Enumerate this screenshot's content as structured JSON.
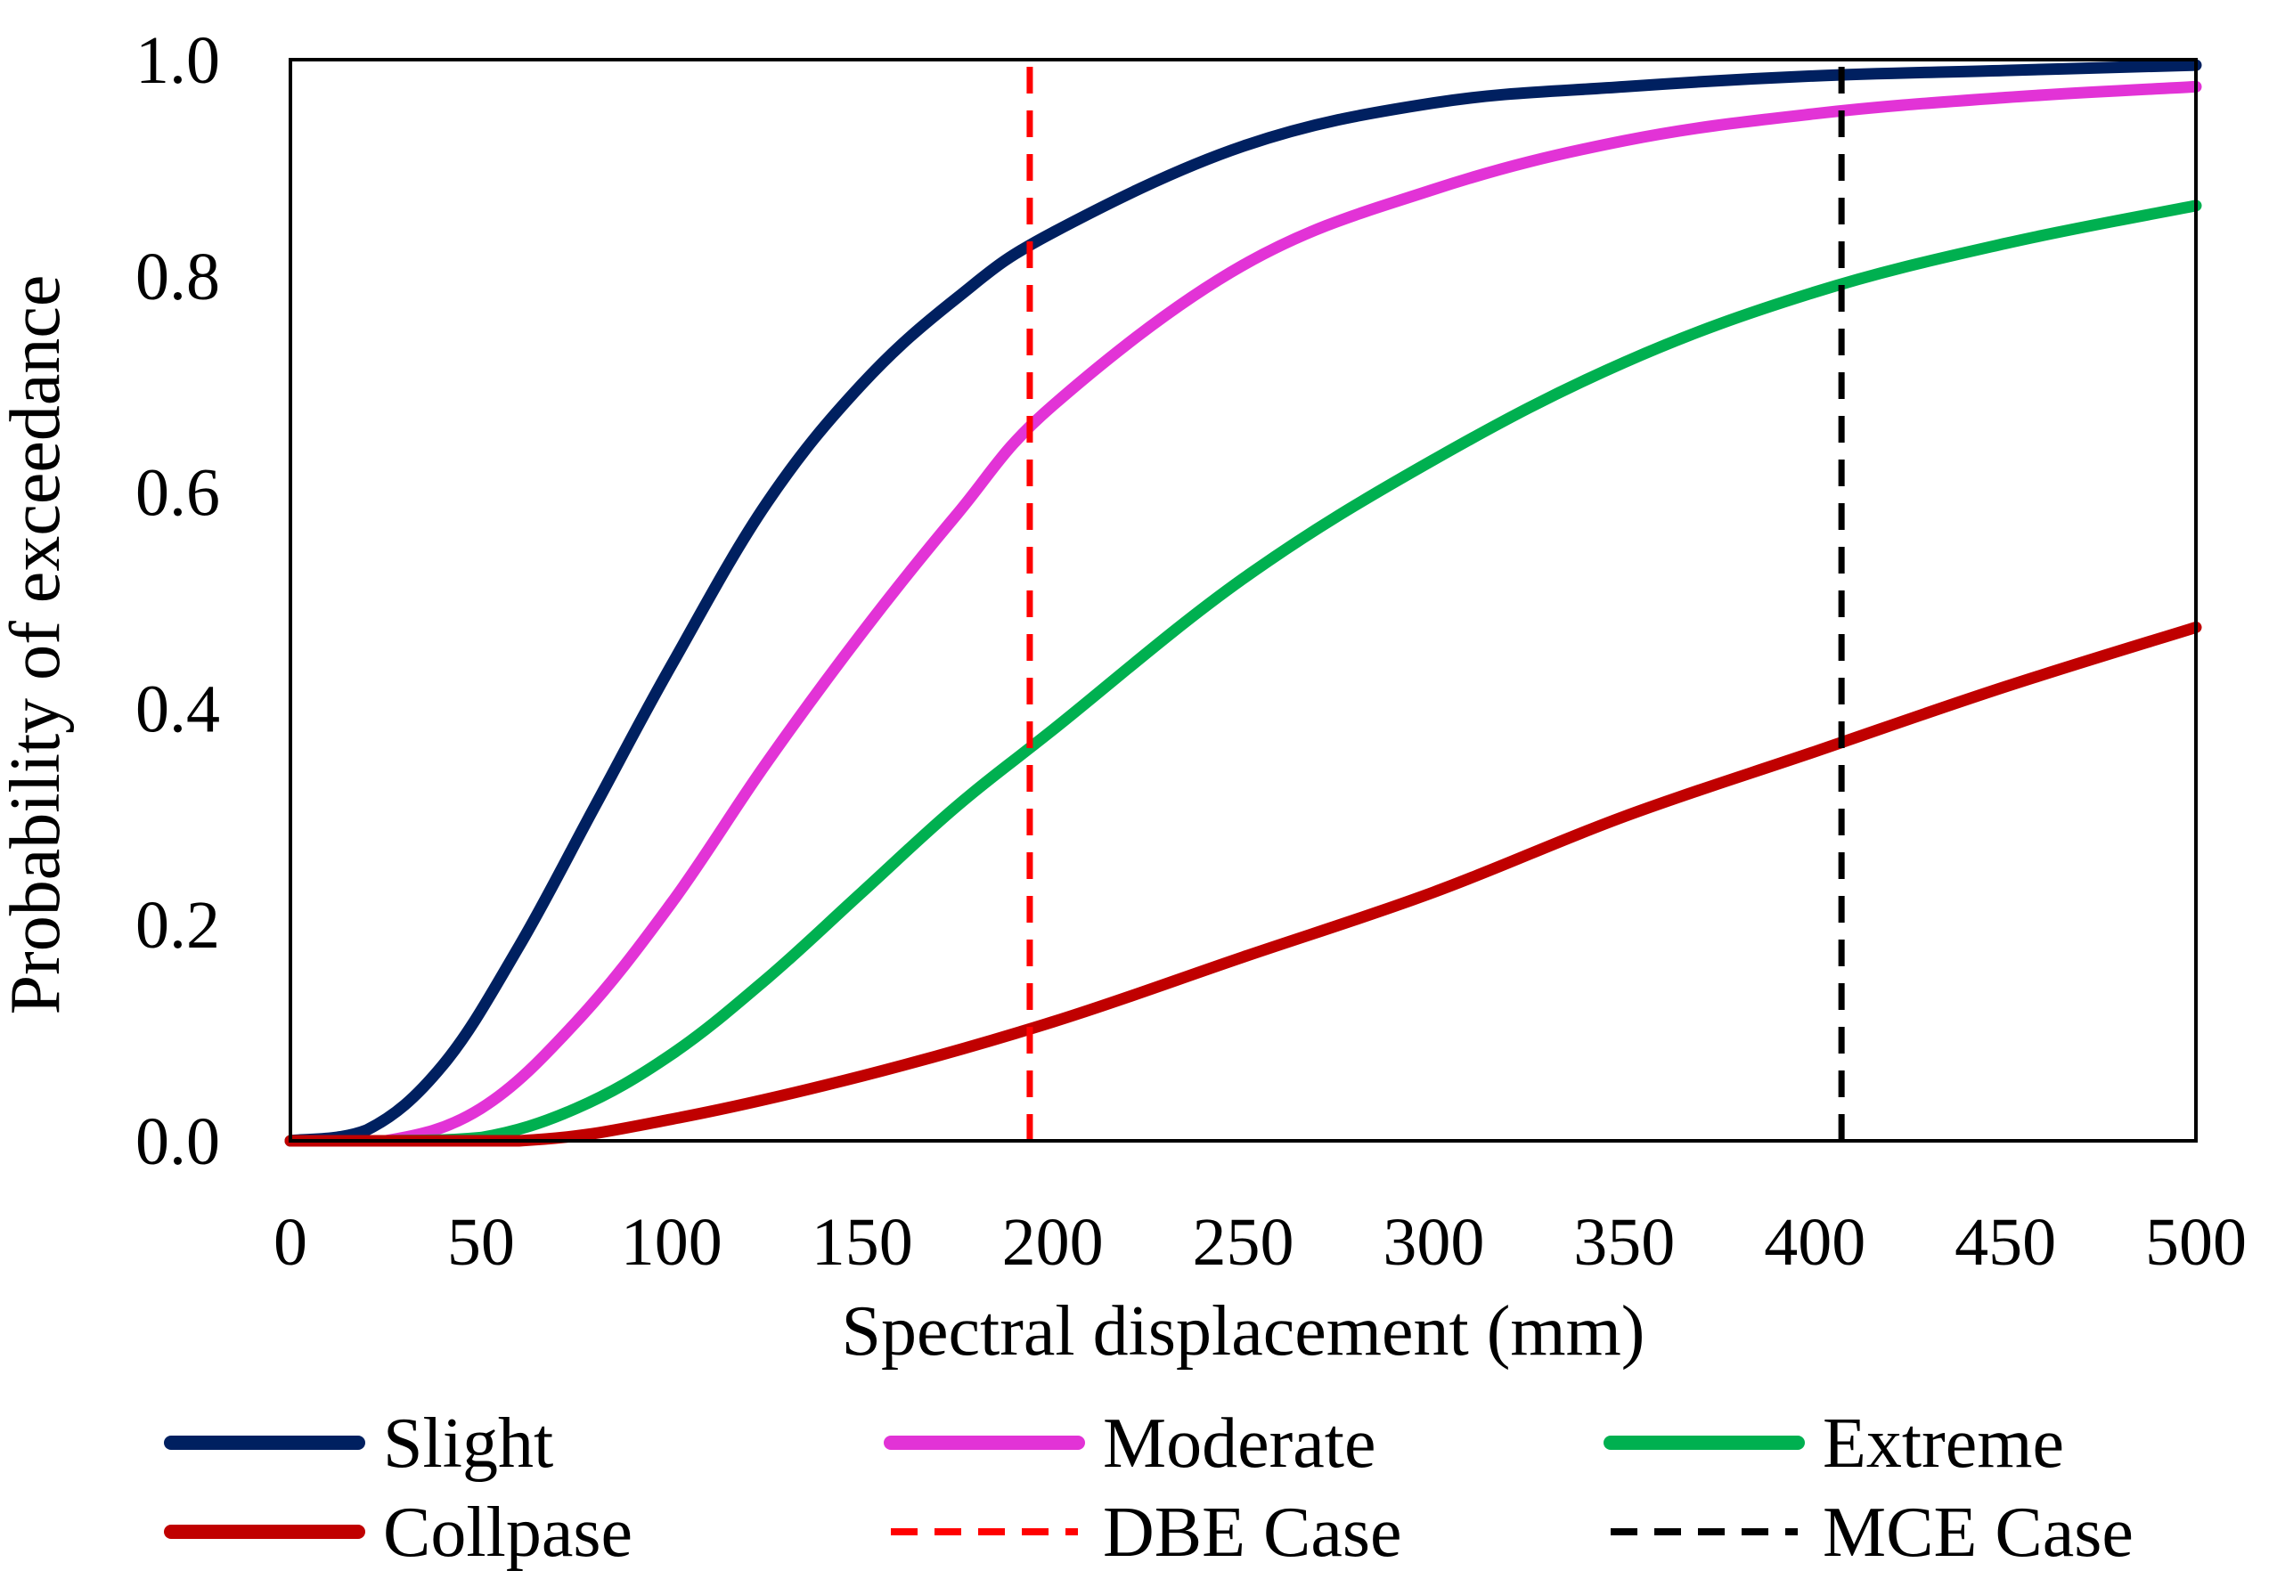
{
  "chart_data": {
    "type": "line",
    "title": "",
    "xlabel": "Spectral displacement (mm)",
    "ylabel": "Probability of exceedance",
    "xlim": [
      0,
      500
    ],
    "ylim": [
      0,
      1
    ],
    "x_ticks": [
      "0",
      "50",
      "100",
      "150",
      "200",
      "250",
      "300",
      "350",
      "400",
      "450",
      "500"
    ],
    "y_ticks": [
      "0.0",
      "0.2",
      "0.4",
      "0.6",
      "0.8",
      "1.0"
    ],
    "grid": false,
    "legend_position": "bottom",
    "series": [
      {
        "name": "Slight",
        "color": "#002060",
        "style": "solid",
        "x": [
          0,
          20,
          40,
          60,
          80,
          100,
          125,
          150,
          175,
          200,
          250,
          300,
          350,
          400,
          450,
          500
        ],
        "y": [
          0.0,
          0.01,
          0.07,
          0.18,
          0.31,
          0.44,
          0.59,
          0.7,
          0.78,
          0.84,
          0.92,
          0.96,
          0.975,
          0.985,
          0.99,
          0.995
        ]
      },
      {
        "name": "Moderate",
        "color": "#E233D6",
        "style": "solid",
        "x": [
          0,
          25,
          50,
          75,
          100,
          125,
          150,
          175,
          200,
          250,
          300,
          350,
          400,
          450,
          500
        ],
        "y": [
          0.0,
          0.0,
          0.03,
          0.11,
          0.22,
          0.35,
          0.47,
          0.58,
          0.68,
          0.81,
          0.88,
          0.925,
          0.95,
          0.965,
          0.975
        ]
      },
      {
        "name": "Extreme",
        "color": "#00B050",
        "style": "solid",
        "x": [
          0,
          25,
          50,
          75,
          100,
          125,
          150,
          175,
          200,
          250,
          300,
          350,
          400,
          450,
          500
        ],
        "y": [
          0.0,
          0.0,
          0.003,
          0.03,
          0.08,
          0.15,
          0.23,
          0.31,
          0.38,
          0.52,
          0.63,
          0.72,
          0.785,
          0.83,
          0.865
        ]
      },
      {
        "name": "Collpase",
        "color": "#C00000",
        "style": "solid",
        "x": [
          0,
          60,
          100,
          150,
          200,
          250,
          300,
          350,
          400,
          450,
          500
        ],
        "y": [
          0.0,
          0.0,
          0.02,
          0.06,
          0.11,
          0.17,
          0.23,
          0.3,
          0.36,
          0.42,
          0.475
        ]
      },
      {
        "name": "DBE Case",
        "color": "#FF0000",
        "style": "dashed",
        "x": [
          194,
          194
        ],
        "y": [
          0,
          1
        ]
      },
      {
        "name": "MCE Case",
        "color": "#000000",
        "style": "dashed",
        "x": [
          407,
          407
        ],
        "y": [
          0,
          1
        ]
      }
    ]
  }
}
